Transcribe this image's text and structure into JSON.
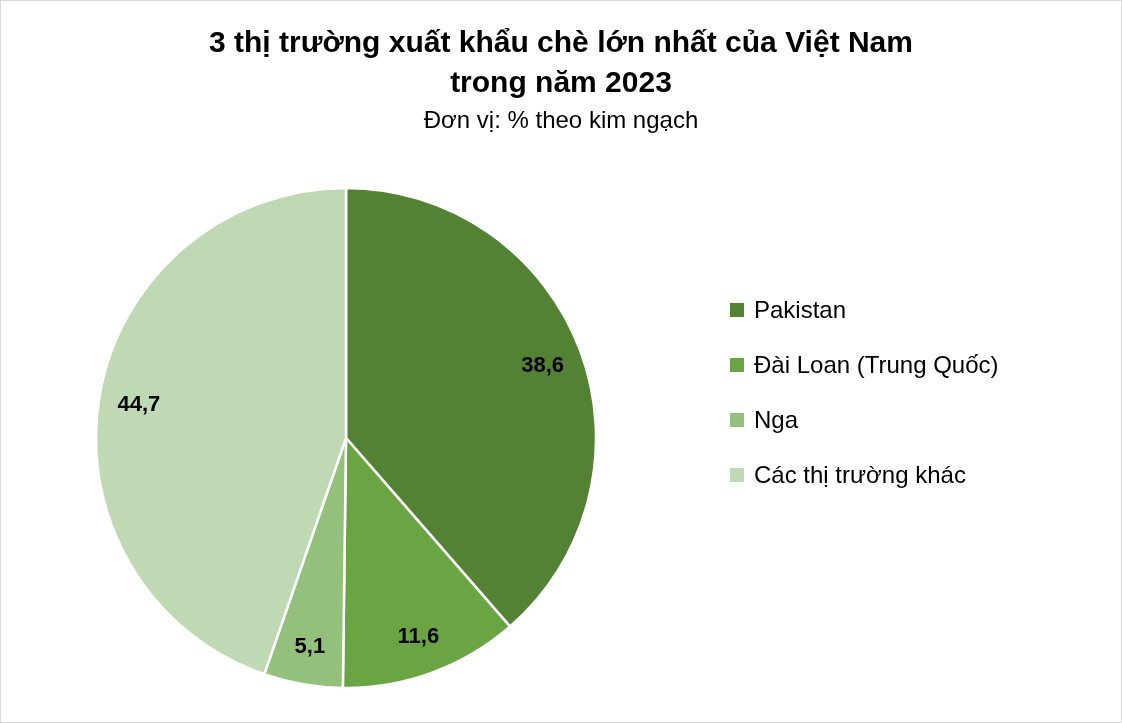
{
  "chart_data": {
    "type": "pie",
    "title": "3 thị trường xuất khẩu chè lớn nhất của Việt Nam\ntrong năm 2023",
    "subtitle": "Đơn vị: % theo kim ngạch",
    "categories": [
      "Pakistan",
      "Đài Loan (Trung Quốc)",
      "Nga",
      "Các thị trường khác"
    ],
    "values": [
      38.6,
      11.6,
      5.1,
      44.7
    ],
    "value_labels": [
      "38,6",
      "11,6",
      "5,1",
      "44,7"
    ],
    "colors": [
      "#548235",
      "#6aa443",
      "#93c07b",
      "#c0d9b5"
    ],
    "legend": "right"
  }
}
